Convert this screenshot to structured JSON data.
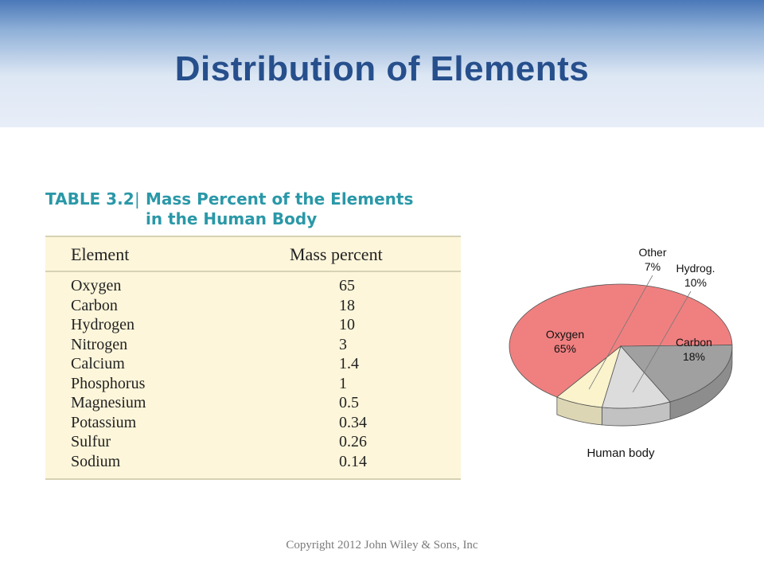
{
  "slide": {
    "title": "Distribution of Elements",
    "copyright": "Copyright 2012 John Wiley & Sons, Inc"
  },
  "table": {
    "caption_prefix": "TABLE 3.2",
    "caption_line1": "Mass Percent of the Elements",
    "caption_line2": "in the Human Body",
    "headers": [
      "Element",
      "Mass percent"
    ],
    "rows": [
      [
        "Oxygen",
        "65"
      ],
      [
        "Carbon",
        "18"
      ],
      [
        "Hydrogen",
        "10"
      ],
      [
        "Nitrogen",
        "3"
      ],
      [
        "Calcium",
        "1.4"
      ],
      [
        "Phosphorus",
        "1"
      ],
      [
        "Magnesium",
        "0.5"
      ],
      [
        "Potassium",
        "0.34"
      ],
      [
        "Sulfur",
        "0.26"
      ],
      [
        "Sodium",
        "0.14"
      ]
    ]
  },
  "chart_data": {
    "type": "pie",
    "title": "",
    "caption": "Human body",
    "slices": [
      {
        "label": "Oxygen",
        "value_label": "65%",
        "value": 65,
        "color": "#f08080"
      },
      {
        "label": "Carbon",
        "value_label": "18%",
        "value": 18,
        "color": "#a0a0a0"
      },
      {
        "label": "Hydrog.",
        "value_label": "10%",
        "value": 10,
        "color": "#dcdcdc"
      },
      {
        "label": "Other",
        "value_label": "7%",
        "value": 7,
        "color": "#faf3cc"
      }
    ],
    "style": "3d"
  }
}
